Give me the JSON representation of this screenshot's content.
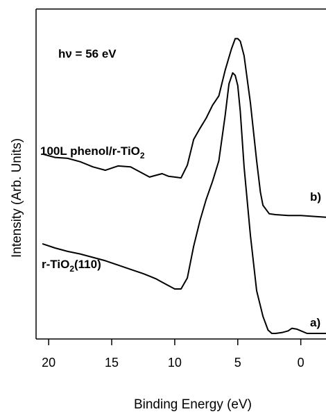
{
  "chart_data": {
    "type": "line",
    "xlabel": "Binding Energy (eV)",
    "ylabel": "Intensity (Arb. Units)",
    "xlim": [
      21,
      -2
    ],
    "x_reversed": true,
    "x_ticks": [
      20,
      15,
      10,
      5,
      0
    ],
    "y_ticks_labeled": false,
    "grid": false,
    "annotations": {
      "energy": "hν = 56 eV",
      "phenol_main": "100L phenol/r-TiO",
      "phenol_sub": "2",
      "clean_main": "r-TiO",
      "clean_sub": "2",
      "clean_tail": "(110)",
      "label_b": "b)",
      "label_a": "a)"
    },
    "series": [
      {
        "label": "b)",
        "x": [
          20.5,
          19.5,
          18.5,
          17.5,
          16.5,
          15.5,
          14.5,
          13.5,
          12.5,
          12.0,
          11.5,
          11.0,
          10.5,
          10.0,
          9.5,
          9.0,
          8.5,
          8.0,
          7.5,
          7.0,
          6.5,
          6.0,
          5.5,
          5.2,
          5.0,
          4.8,
          4.5,
          4.0,
          3.5,
          3.2,
          3.0,
          2.5,
          2.0,
          1.0,
          0.0,
          -1.0,
          -2.0
        ],
        "y": [
          2.1,
          2.06,
          2.05,
          2.01,
          1.95,
          1.91,
          1.96,
          1.95,
          1.87,
          1.83,
          1.85,
          1.87,
          1.84,
          1.83,
          1.82,
          1.97,
          2.27,
          2.4,
          2.52,
          2.67,
          2.78,
          3.08,
          3.33,
          3.45,
          3.45,
          3.42,
          3.25,
          2.7,
          2.02,
          1.65,
          1.5,
          1.4,
          1.39,
          1.38,
          1.38,
          1.37,
          1.36
        ]
      },
      {
        "label": "a)",
        "x": [
          20.5,
          19.5,
          18.5,
          17.5,
          16.5,
          15.5,
          14.5,
          13.5,
          12.5,
          12.0,
          11.5,
          11.0,
          10.5,
          10.0,
          9.5,
          9.0,
          8.5,
          8.0,
          7.5,
          7.0,
          6.5,
          6.0,
          5.7,
          5.4,
          5.2,
          5.0,
          4.8,
          4.5,
          4.0,
          3.5,
          3.0,
          2.6,
          2.3,
          2.0,
          1.5,
          1.0,
          0.7,
          0.3,
          -0.5,
          -2.0
        ],
        "y": [
          1.05,
          1.0,
          0.96,
          0.93,
          0.89,
          0.85,
          0.8,
          0.75,
          0.7,
          0.67,
          0.64,
          0.6,
          0.56,
          0.52,
          0.52,
          0.65,
          1.02,
          1.32,
          1.57,
          1.78,
          2.02,
          2.55,
          2.92,
          3.05,
          3.02,
          2.9,
          2.6,
          1.95,
          1.15,
          0.5,
          0.2,
          0.04,
          0.0,
          0.0,
          0.01,
          0.03,
          0.06,
          0.05,
          0.0,
          0.0
        ]
      }
    ]
  }
}
